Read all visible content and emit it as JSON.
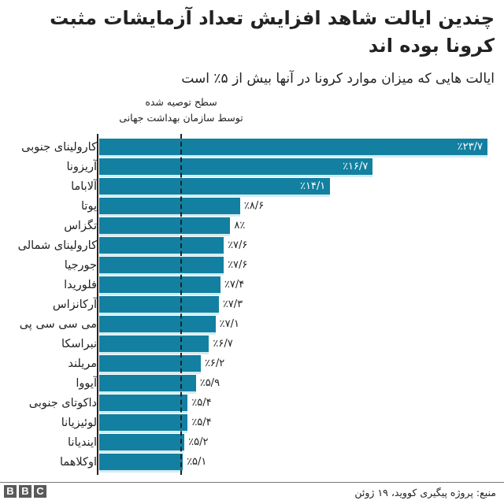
{
  "header": {
    "title": "چندین ایالت شاهد افزایش تعداد آزمایشات مثبت کرونا بوده اند",
    "subtitle": "ایالت هایی که میزان موارد کرونا در آنها بیش از ۵٪ است"
  },
  "reference": {
    "label_line1": "سطح توصیه شده",
    "label_line2": "توسط سازمان بهداشت جهانی",
    "value": 5
  },
  "colors": {
    "bar": "#1380A1",
    "separator": "#d3ecf2",
    "text": "#222222"
  },
  "footer": {
    "source": "منبع: پروژه پیگیری کووید، ۱۹ ژوئن",
    "logo": [
      "B",
      "B",
      "C"
    ]
  },
  "chart_data": {
    "type": "bar",
    "orientation": "horizontal",
    "title": "چندین ایالت شاهد افزایش تعداد آزمایشات مثبت کرونا بوده اند",
    "subtitle": "ایالت هایی که میزان موارد کرونا در آنها بیش از ۵٪ است",
    "xlabel": "",
    "ylabel": "",
    "unit": "%",
    "grid": false,
    "reference_line": {
      "value": 5,
      "style": "dashed",
      "label": "سطح توصیه شده توسط سازمان بهداشت جهانی"
    },
    "categories": [
      "کارولینای جنوبی",
      "آریزونا",
      "آلاباما",
      "یوتا",
      "تگزاس",
      "کارولینای شمالی",
      "جورجیا",
      "فلوریدا",
      "آرکانزاس",
      "می سی سی پی",
      "نبراسکا",
      "مریلند",
      "آیووا",
      "داکوتای جنوبی",
      "لوئیزیانا",
      "ایندیانا",
      "اوکلاهما"
    ],
    "values": [
      23.7,
      16.7,
      14.1,
      8.6,
      8.0,
      7.6,
      7.6,
      7.4,
      7.3,
      7.1,
      6.7,
      6.2,
      5.9,
      5.4,
      5.4,
      5.2,
      5.1
    ],
    "value_labels": [
      "٪۲۳/۷",
      "٪۱۶/۷",
      "٪۱۴/۱",
      "٪۸/۶",
      "۸٪",
      "٪۷/۶",
      "٪۷/۶",
      "٪۷/۴",
      "٪۷/۳",
      "٪۷/۱",
      "٪۶/۷",
      "٪۶/۲",
      "٪۵/۹",
      "٪۵/۴",
      "٪۵/۴",
      "٪۵/۲",
      "٪۵/۱"
    ],
    "xlim": [
      0,
      24
    ]
  }
}
